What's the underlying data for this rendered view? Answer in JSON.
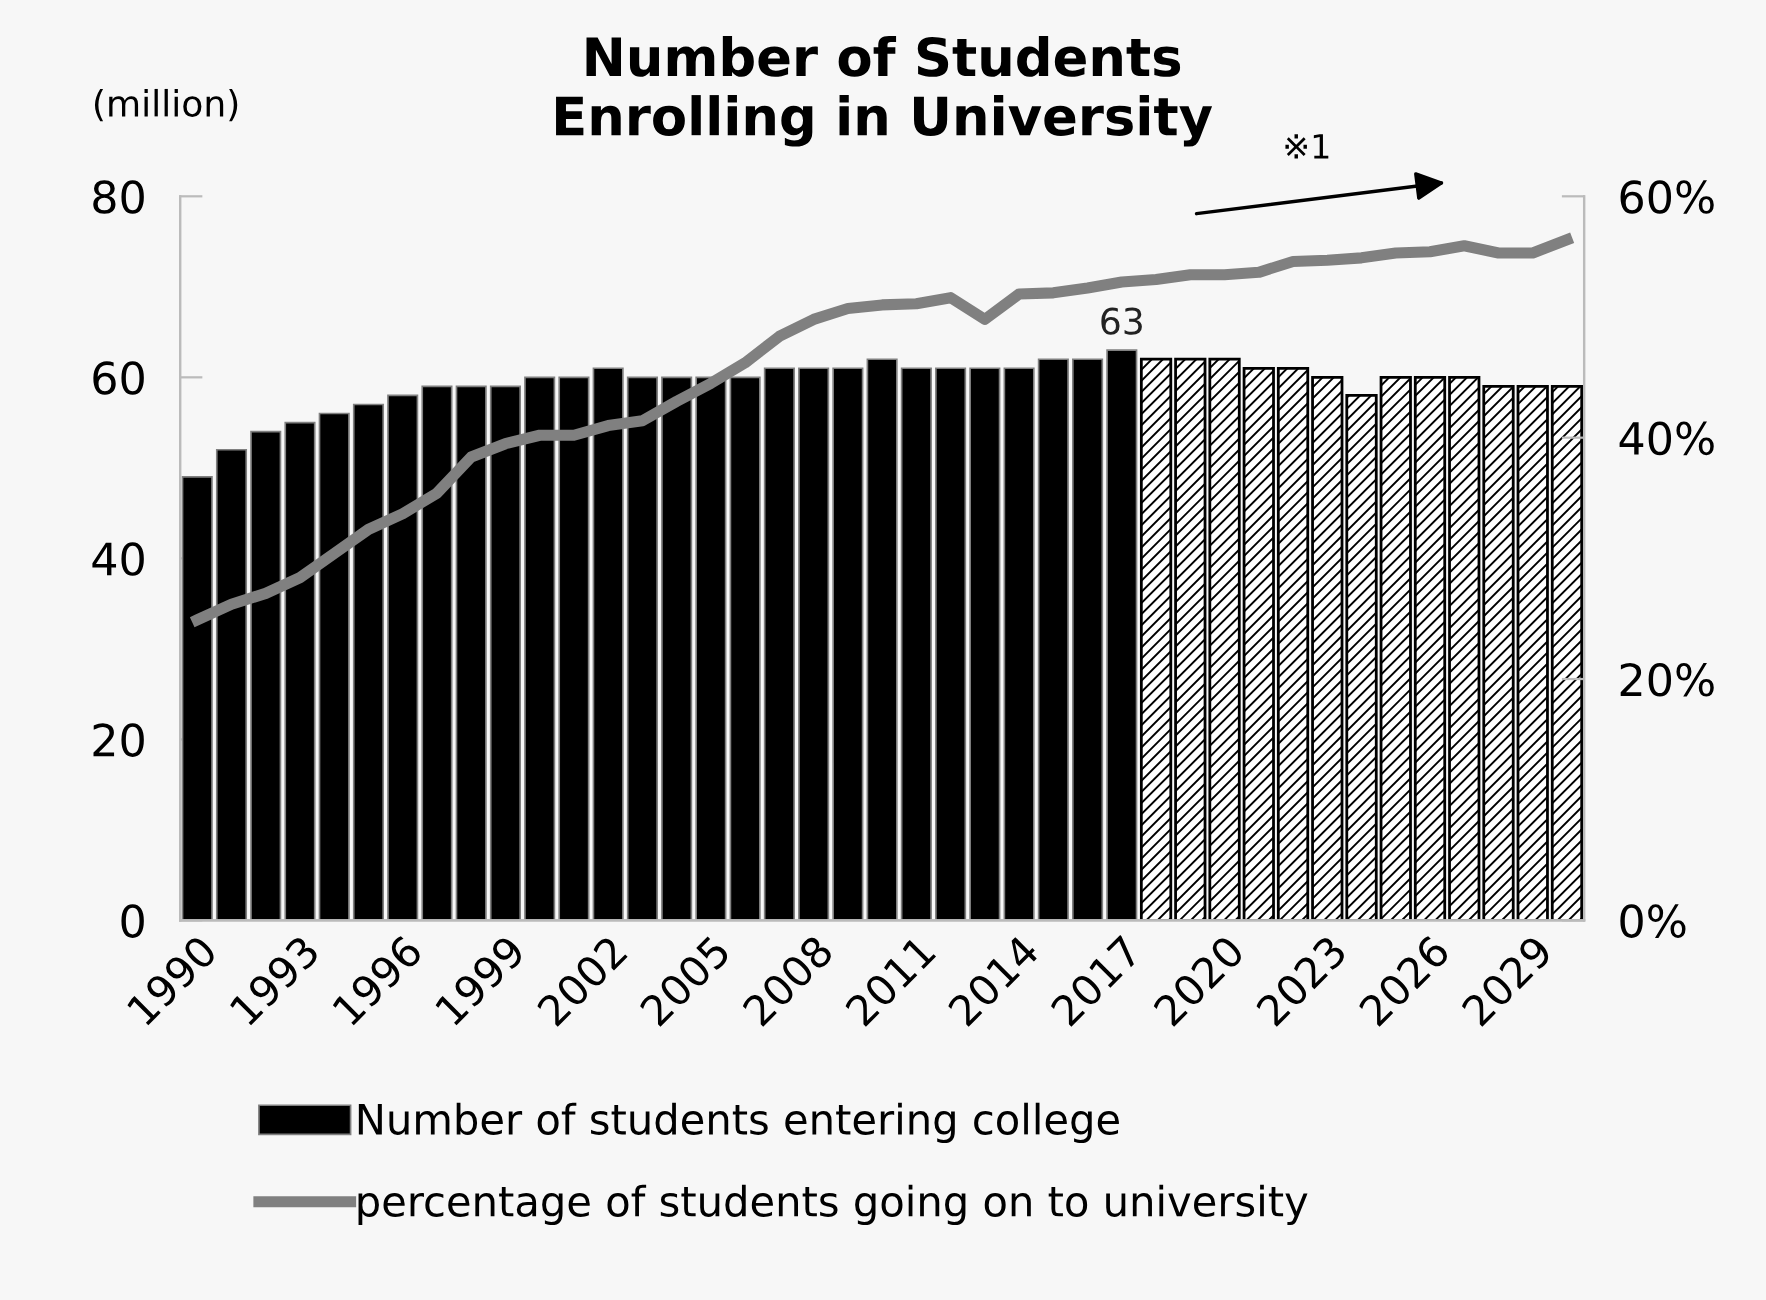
{
  "chart_data": {
    "type": "bar",
    "title": "Number of Students\nEnrolling in University",
    "ylabel": "(million)",
    "annotations": [
      "※1"
    ],
    "categories": [
      "1990",
      null,
      null,
      "1993",
      null,
      null,
      "1996",
      null,
      null,
      "1999",
      null,
      null,
      "2002",
      null,
      null,
      "2005",
      null,
      null,
      "2008",
      null,
      null,
      "2011",
      null,
      null,
      "2014",
      null,
      null,
      "2017",
      null,
      null,
      "2020",
      null,
      null,
      "2023",
      null,
      null,
      "2026",
      null,
      null,
      "2029",
      null
    ],
    "series": [
      {
        "name": "Number of students entering college",
        "color": "#000000",
        "values": [
          49,
          52,
          54,
          55,
          56,
          57,
          58,
          59,
          59,
          59,
          60,
          60,
          61,
          60,
          60,
          60,
          60,
          61,
          61,
          61,
          62,
          61,
          61,
          61,
          61,
          62,
          62,
          63,
          null,
          null,
          null,
          null,
          null,
          null,
          null,
          null,
          null,
          null,
          null,
          null,
          null
        ],
        "value_labels": [
          null,
          null,
          null,
          null,
          null,
          null,
          null,
          null,
          null,
          null,
          null,
          null,
          null,
          null,
          null,
          null,
          null,
          null,
          null,
          null,
          null,
          null,
          null,
          null,
          null,
          null,
          null,
          "63",
          null,
          null,
          null,
          null,
          null,
          null,
          null,
          null,
          null,
          null,
          null,
          null,
          null
        ]
      },
      {
        "color": "#000000",
        "values": [
          null,
          null,
          null,
          null,
          null,
          null,
          null,
          null,
          null,
          null,
          null,
          null,
          null,
          null,
          null,
          null,
          null,
          null,
          null,
          null,
          null,
          null,
          null,
          null,
          null,
          null,
          null,
          null,
          62,
          62,
          62,
          61,
          61,
          60,
          58,
          60,
          60,
          60,
          59,
          59,
          59
        ]
      },
      {
        "name": "percentage of students going on to university",
        "type": "line",
        "axis": "y2",
        "color": "#808080",
        "values": [
          24.9,
          26.2,
          27.1,
          28.4,
          30.4,
          32.4,
          33.7,
          35.4,
          38.4,
          39.5,
          40.2,
          40.2,
          41.0,
          41.4,
          43.0,
          44.5,
          46.2,
          48.4,
          49.8,
          50.7,
          51.0,
          51.1,
          51.6,
          49.8,
          51.9,
          52.0,
          52.4,
          52.9,
          53.1,
          53.5,
          53.5,
          53.7,
          54.6,
          54.7,
          54.9,
          55.3,
          55.4,
          55.9,
          55.3,
          55.3,
          56.4
        ]
      }
    ],
    "ylim": [
      0,
      80
    ],
    "yticks": [
      0,
      20,
      40,
      60,
      80
    ],
    "y2lim": [
      0,
      60
    ],
    "y2ticks": [
      {
        "value": 0,
        "label": "0%"
      },
      {
        "value": 20,
        "label": "20%"
      },
      {
        "value": 40,
        "label": "40%"
      },
      {
        "value": 60,
        "label": "60%"
      }
    ],
    "grid": false,
    "legend": "bottom"
  }
}
